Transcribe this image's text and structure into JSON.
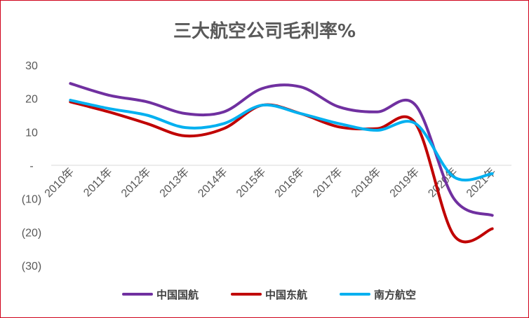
{
  "chart_data": {
    "type": "line",
    "title": "三大航空公司毛利率%",
    "xlabel": "",
    "ylabel": "",
    "categories": [
      "2010年",
      "2011年",
      "2012年",
      "2013年",
      "2014年",
      "2015年",
      "2016年",
      "2017年",
      "2018年",
      "2019年",
      "2020年",
      "2021年"
    ],
    "ylim": [
      -30,
      30
    ],
    "yticks": [
      {
        "value": 30,
        "label": "30"
      },
      {
        "value": 20,
        "label": "20"
      },
      {
        "value": 10,
        "label": "10"
      },
      {
        "value": 0,
        "label": "-"
      },
      {
        "value": -10,
        "label": "(10)"
      },
      {
        "value": -20,
        "label": "(20)"
      },
      {
        "value": -30,
        "label": "(30)"
      }
    ],
    "grid": false,
    "legend_position": "bottom",
    "series": [
      {
        "name": "中国国航",
        "color": "#7030a0",
        "values": [
          24.5,
          21,
          19,
          15.5,
          16,
          23,
          23.5,
          17.5,
          16,
          18,
          -10,
          -15
        ]
      },
      {
        "name": "中国东航",
        "color": "#c00000",
        "values": [
          19,
          16,
          12.5,
          8.8,
          11,
          18,
          15.5,
          11.5,
          11,
          12.5,
          -21,
          -19
        ]
      },
      {
        "name": "南方航空",
        "color": "#00b0f0",
        "values": [
          19.5,
          17,
          15,
          11.3,
          12.5,
          18,
          15.5,
          12.5,
          10.5,
          12.5,
          -3.5,
          -2.5
        ]
      }
    ]
  }
}
